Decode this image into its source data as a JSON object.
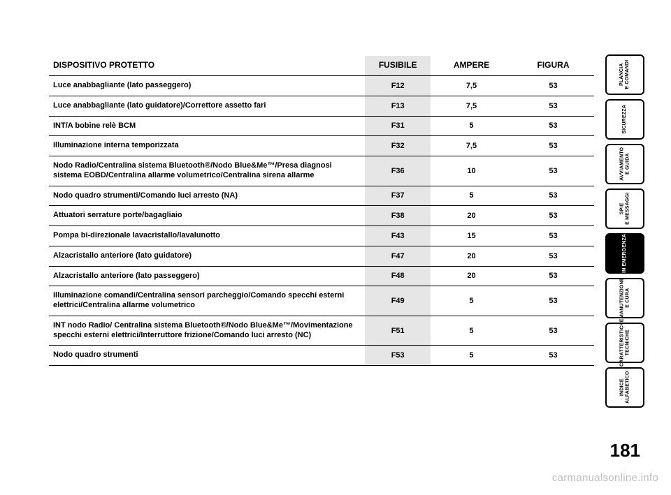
{
  "page_number": "181",
  "watermark": "carmanualsonline.info",
  "headers": {
    "device": "DISPOSITIVO PROTETTO",
    "fuse": "FUSIBILE",
    "ampere": "AMPERE",
    "figure": "FIGURA"
  },
  "tabs": [
    {
      "label": "PLANCIA\nE COMANDI",
      "active": false
    },
    {
      "label": "SICUREZZA",
      "active": false
    },
    {
      "label": "AVVIAMENTO\nE GUIDA",
      "active": false
    },
    {
      "label": "SPIE\nE MESSAGGI",
      "active": false
    },
    {
      "label": "IN EMERGENZA",
      "active": true
    },
    {
      "label": "MANUTENZIONE\nE CURA",
      "active": false
    },
    {
      "label": "CARATTERISTICHE\nTECNICHE",
      "active": false
    },
    {
      "label": "INDICE\nALFABETICO",
      "active": false
    }
  ],
  "rows": [
    {
      "d": "Luce anabbagliante (lato passeggero)",
      "f": "F12",
      "a": "7,5",
      "g": "53"
    },
    {
      "d": "Luce anabbagliante (lato guidatore)/Correttore assetto fari",
      "f": "F13",
      "a": "7,5",
      "g": "53"
    },
    {
      "d": "INT/A bobine relè BCM",
      "f": "F31",
      "a": "5",
      "g": "53"
    },
    {
      "d": "Illuminazione interna temporizzata",
      "f": "F32",
      "a": "7,5",
      "g": "53"
    },
    {
      "d": "Nodo Radio/Centralina sistema Bluetooth®/Nodo Blue&Me™/Presa diagnosi sistema EOBD/Centralina allarme volumetrico/Centralina sirena allarme",
      "f": "F36",
      "a": "10",
      "g": "53"
    },
    {
      "d": "Nodo quadro strumenti/Comando luci arresto (NA)",
      "f": "F37",
      "a": "5",
      "g": "53"
    },
    {
      "d": "Attuatori serrature porte/bagagliaio",
      "f": "F38",
      "a": "20",
      "g": "53"
    },
    {
      "d": "Pompa bi-direzionale lavacristallo/lavalunotto",
      "f": "F43",
      "a": "15",
      "g": "53"
    },
    {
      "d": "Alzacristallo anteriore (lato guidatore)",
      "f": "F47",
      "a": "20",
      "g": "53"
    },
    {
      "d": "Alzacristallo anteriore (lato passeggero)",
      "f": "F48",
      "a": "20",
      "g": "53"
    },
    {
      "d": "Illuminazione comandi/Centralina sensori parcheggio/Comando specchi esterni elettrici/Centralina allarme volumetrico",
      "f": "F49",
      "a": "5",
      "g": "53"
    },
    {
      "d": "INT nodo Radio/ Centralina sistema Bluetooth®/Nodo Blue&Me™/Movimentazione specchi esterni elettrici/Interruttore frizione/Comando luci arresto (NC)",
      "f": "F51",
      "a": "5",
      "g": "53"
    },
    {
      "d": "Nodo quadro strumenti",
      "f": "F53",
      "a": "5",
      "g": "53"
    }
  ],
  "style": {
    "row_border_color": "#000000",
    "shaded_bg": "#e6e6e6",
    "font_size_body": 11,
    "font_size_header": 12,
    "font_size_pagenum": 26
  }
}
